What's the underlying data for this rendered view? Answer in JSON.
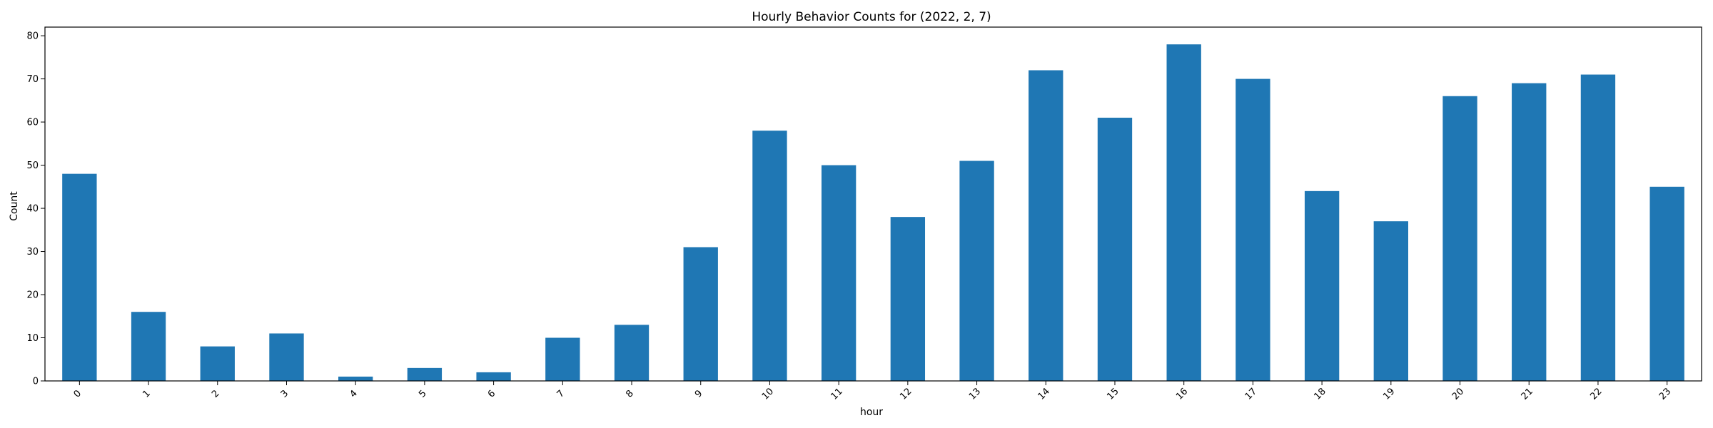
{
  "chart_data": {
    "type": "bar",
    "title": "Hourly Behavior Counts for (2022, 2, 7)",
    "xlabel": "hour",
    "ylabel": "Count",
    "categories": [
      "0",
      "1",
      "2",
      "3",
      "4",
      "5",
      "6",
      "7",
      "8",
      "9",
      "10",
      "11",
      "12",
      "13",
      "14",
      "15",
      "16",
      "17",
      "18",
      "19",
      "20",
      "21",
      "22",
      "23"
    ],
    "values": [
      48,
      16,
      8,
      11,
      1,
      3,
      2,
      10,
      13,
      31,
      58,
      50,
      38,
      51,
      72,
      61,
      78,
      70,
      44,
      37,
      66,
      69,
      71,
      45
    ],
    "ylim": [
      0,
      82
    ],
    "yticks": [
      0,
      10,
      20,
      30,
      40,
      50,
      60,
      70,
      80
    ],
    "grid": false,
    "legend": "none",
    "colors": {
      "bar": "#1f77b4",
      "axis": "#000000",
      "background": "#ffffff"
    }
  }
}
